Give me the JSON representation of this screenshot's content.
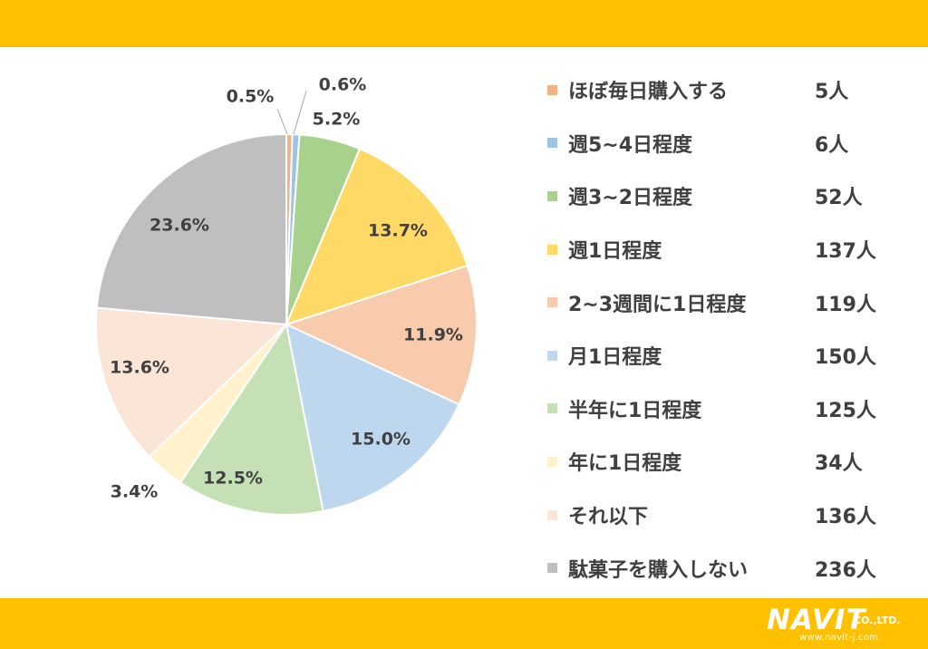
{
  "chart_data": {
    "type": "pie",
    "start_angle_deg": 0,
    "direction": "clockwise",
    "slices": [
      {
        "name": "ほぼ毎日購入する",
        "count_label": "5人",
        "value": 0.5,
        "label": "0.5%",
        "color": "#F4B183"
      },
      {
        "name": "週5~4日程度",
        "count_label": "6人",
        "value": 0.6,
        "label": "0.6%",
        "color": "#9DC3E6"
      },
      {
        "name": "週3~2日程度",
        "count_label": "52人",
        "value": 5.2,
        "label": "5.2%",
        "color": "#A9D18E"
      },
      {
        "name": "週1日程度",
        "count_label": "137人",
        "value": 13.7,
        "label": "13.7%",
        "color": "#FFD966"
      },
      {
        "name": "2~3週間に1日程度",
        "count_label": "119人",
        "value": 11.9,
        "label": "11.9%",
        "color": "#F8CBAD"
      },
      {
        "name": "月1日程度",
        "count_label": "150人",
        "value": 15.0,
        "label": "15.0%",
        "color": "#BDD7EE"
      },
      {
        "name": "半年に1日程度",
        "count_label": "125人",
        "value": 12.5,
        "label": "12.5%",
        "color": "#C5E0B4"
      },
      {
        "name": "年に1日程度",
        "count_label": "34人",
        "value": 3.4,
        "label": "3.4%",
        "color": "#FFF2CC"
      },
      {
        "name": "それ以下",
        "count_label": "136人",
        "value": 13.6,
        "label": "13.6%",
        "color": "#FBE5D6"
      },
      {
        "name": "駄菓子を購入しない",
        "count_label": "236人",
        "value": 23.6,
        "label": "23.6%",
        "color": "#BFBFBF"
      }
    ],
    "legend_position": "right"
  },
  "colors": {
    "banner": "#FFC000",
    "text": "#404040"
  },
  "logo": {
    "main": "NAVIT",
    "suffix": "CO.,LTD.",
    "url": "www.navit-j.com"
  }
}
